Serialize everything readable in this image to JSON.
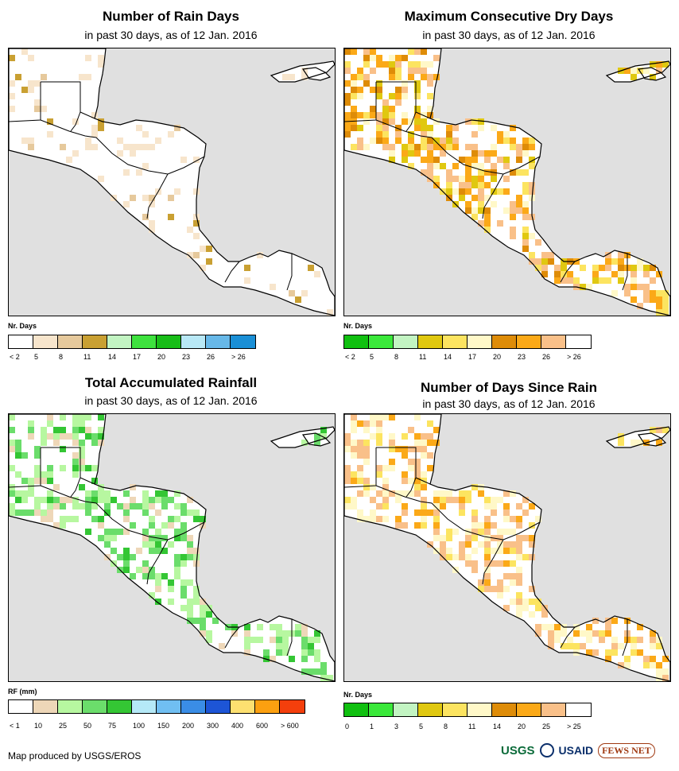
{
  "panels": [
    {
      "id": "rain-days",
      "title": "Number of Rain Days",
      "subtitle": "in past 30 days, as of 12 Jan. 2016",
      "legend_title": "Nr. Days",
      "legend_colors": [
        "#ffffff",
        "#f7e5cc",
        "#e6c99c",
        "#c9a032",
        "#c2f4c2",
        "#3ee23e",
        "#18bd18",
        "#b8e8f6",
        "#67b8e8",
        "#1a8fd6"
      ],
      "legend_labels": [
        "< 2",
        "5",
        "8",
        "11",
        "14",
        "17",
        "20",
        "23",
        "26",
        "> 26"
      ],
      "ocean_color": "#e0e0e0"
    },
    {
      "id": "max-dry-days",
      "title": "Maximum Consecutive Dry Days",
      "subtitle": "in past 30 days, as of 12 Jan. 2016",
      "legend_title": "Nr. Days",
      "legend_colors": [
        "#10c010",
        "#3ae83a",
        "#c2f4c2",
        "#e0c810",
        "#fce460",
        "#fff8c8",
        "#de8c08",
        "#fba918",
        "#f9c089",
        "#ffffff"
      ],
      "legend_labels": [
        "< 2",
        "5",
        "8",
        "11",
        "14",
        "17",
        "20",
        "23",
        "26",
        "> 26"
      ],
      "ocean_color": "#e0e0e0"
    },
    {
      "id": "total-rainfall",
      "title": "Total Accumulated Rainfall",
      "subtitle": "in past 30 days, as of 12 Jan. 2016",
      "legend_title": "RF (mm)",
      "legend_colors": [
        "#ffffff",
        "#eed7b8",
        "#b7f7a0",
        "#6bdd6b",
        "#34c634",
        "#b5e9f7",
        "#70bff2",
        "#3a8de6",
        "#1d55d6",
        "#fde070",
        "#fca010",
        "#f43f0c"
      ],
      "legend_labels": [
        "< 1",
        "10",
        "25",
        "50",
        "75",
        "100",
        "150",
        "200",
        "300",
        "400",
        "600",
        "> 600"
      ],
      "ocean_color": "#e0e0e0"
    },
    {
      "id": "days-since-rain",
      "title": "Number of Days Since Rain",
      "subtitle": "in past 30 days, as of 12 Jan. 2016",
      "legend_title": "Nr. Days",
      "legend_colors": [
        "#10c010",
        "#3ae83a",
        "#c2f4c2",
        "#e0c810",
        "#fce460",
        "#fff8c8",
        "#de8c08",
        "#fba918",
        "#f9c089",
        "#ffffff"
      ],
      "legend_labels": [
        "0",
        "1",
        "3",
        "5",
        "8",
        "11",
        "14",
        "20",
        "25",
        "> 25"
      ],
      "ocean_color": "#e0e0e0"
    }
  ],
  "footer": {
    "credit": "Map produced by USGS/EROS",
    "logo_usgs": "USGS",
    "logo_usaid": "USAID",
    "logo_fews": "FEWS NET"
  }
}
